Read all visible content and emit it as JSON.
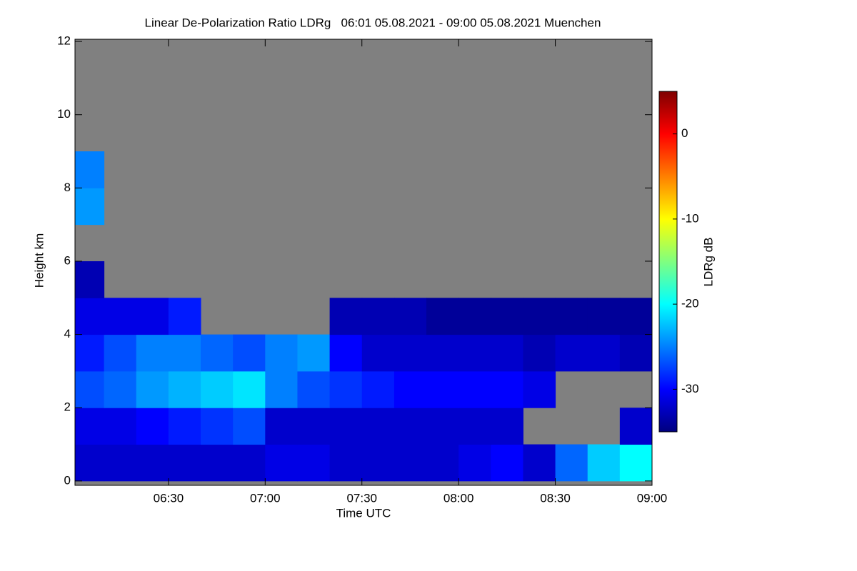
{
  "chart_data": {
    "type": "heatmap",
    "title": "Linear De-Polarization Ratio LDRg   06:01 05.08.2021 - 09:00 05.08.2021 Muenchen",
    "x_label": "Time UTC",
    "y_label": "Height km",
    "colorbar_label": "LDRg dB",
    "xlim": [
      6.0167,
      9.0
    ],
    "xticks": [
      {
        "value": 6.5,
        "label": "06:30"
      },
      {
        "value": 7.0,
        "label": "07:00"
      },
      {
        "value": 7.5,
        "label": "07:30"
      },
      {
        "value": 8.0,
        "label": "08:00"
      },
      {
        "value": 8.5,
        "label": "08:30"
      },
      {
        "value": 9.0,
        "label": "09:00"
      }
    ],
    "ylim": [
      -0.12,
      12.06
    ],
    "yticks": [
      0,
      2,
      4,
      6,
      8,
      10,
      12
    ],
    "zlim": [
      -35,
      5
    ],
    "zticks": [
      -30,
      -20,
      -10,
      0
    ],
    "colormap": "jet",
    "missing_color": "#808080",
    "xbins": [
      6.0167,
      6.1667,
      6.3333,
      6.5,
      6.6667,
      6.8333,
      7.0,
      7.1667,
      7.3333,
      7.5,
      7.6667,
      7.8333,
      8.0,
      8.1667,
      8.3333,
      8.5,
      8.6667,
      8.8333,
      9.0
    ],
    "ybins": [
      0,
      1,
      2,
      3,
      4,
      5,
      6,
      7,
      8,
      9,
      10,
      11,
      12
    ],
    "values": [
      [
        -32,
        -32,
        -32,
        -32,
        -32,
        -32,
        -31,
        -31,
        -32,
        -32,
        -32,
        -32,
        -31,
        -30,
        -32,
        -26,
        -22,
        -20
      ],
      [
        -31,
        -31,
        -30,
        -29,
        -28,
        -27,
        -32,
        -32,
        -32,
        -32,
        -32,
        -32,
        -32,
        -32,
        null,
        null,
        null,
        -32
      ],
      [
        -27,
        -26,
        -24,
        -23,
        -22,
        -21,
        -25,
        -27,
        -28,
        -29,
        -30,
        -30,
        -30,
        -30,
        -31,
        null,
        null,
        null
      ],
      [
        -29,
        -27,
        -25,
        -25,
        -26,
        -27,
        -25,
        -24,
        -30,
        -32,
        -32,
        -32,
        -32,
        -32,
        -33,
        -32,
        -32,
        -33
      ],
      [
        -31,
        -31,
        -31,
        -29,
        null,
        null,
        null,
        null,
        -33,
        -33,
        -33,
        -34,
        -34,
        -34,
        -34,
        -34,
        -34,
        -34
      ],
      [
        -33,
        null,
        null,
        null,
        null,
        null,
        null,
        null,
        null,
        null,
        null,
        null,
        null,
        null,
        null,
        null,
        null,
        null
      ],
      [
        null,
        null,
        null,
        null,
        null,
        null,
        null,
        null,
        null,
        null,
        null,
        null,
        null,
        null,
        null,
        null,
        null,
        null
      ],
      [
        -24,
        null,
        null,
        null,
        null,
        null,
        null,
        null,
        null,
        null,
        null,
        null,
        null,
        null,
        null,
        null,
        null,
        null
      ],
      [
        -25,
        null,
        null,
        null,
        null,
        null,
        null,
        null,
        null,
        null,
        null,
        null,
        null,
        null,
        null,
        null,
        null,
        null
      ],
      [
        null,
        null,
        null,
        null,
        null,
        null,
        null,
        null,
        null,
        null,
        null,
        null,
        null,
        null,
        null,
        null,
        null,
        null
      ],
      [
        null,
        null,
        null,
        null,
        null,
        null,
        null,
        null,
        null,
        null,
        null,
        null,
        null,
        null,
        null,
        null,
        null,
        null
      ],
      [
        null,
        null,
        null,
        null,
        null,
        null,
        null,
        null,
        null,
        null,
        null,
        null,
        null,
        null,
        null,
        null,
        null,
        null
      ]
    ]
  }
}
